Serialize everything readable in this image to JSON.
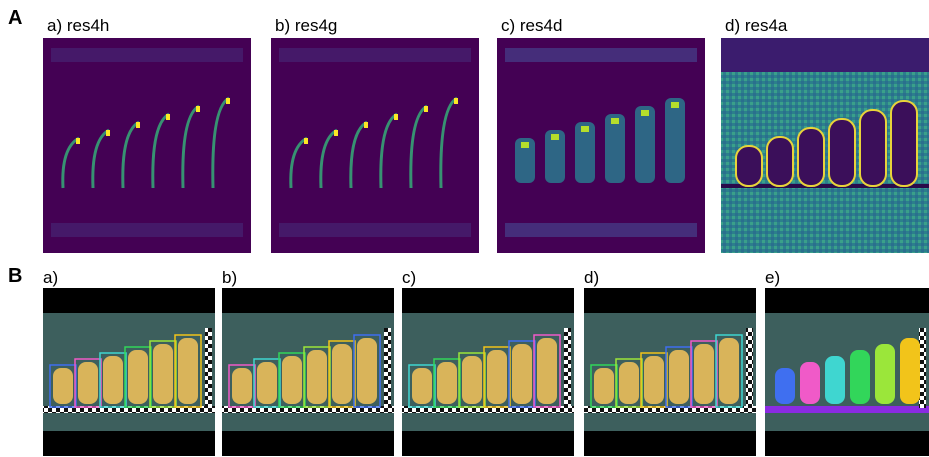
{
  "panel_a": {
    "label": "A",
    "images": [
      {
        "caption": "a) res4h"
      },
      {
        "caption": "b) res4g"
      },
      {
        "caption": "c) res4d"
      },
      {
        "caption": "d) res4a"
      }
    ]
  },
  "panel_b": {
    "label": "B",
    "images": [
      {
        "caption": "a)"
      },
      {
        "caption": "b)"
      },
      {
        "caption": "c)"
      },
      {
        "caption": "d)"
      },
      {
        "caption": "e)"
      }
    ]
  }
}
